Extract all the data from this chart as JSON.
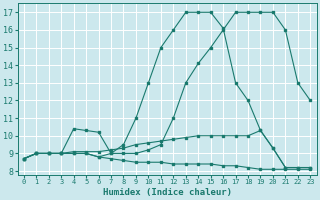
{
  "xlabel": "Humidex (Indice chaleur)",
  "xlim": [
    -0.5,
    23.5
  ],
  "ylim": [
    7.8,
    17.5
  ],
  "xticks": [
    0,
    1,
    2,
    3,
    4,
    5,
    6,
    7,
    8,
    9,
    10,
    11,
    12,
    13,
    14,
    15,
    16,
    17,
    18,
    19,
    20,
    21,
    22,
    23
  ],
  "yticks": [
    8,
    9,
    10,
    11,
    12,
    13,
    14,
    15,
    16,
    17
  ],
  "bg_color": "#cce8ed",
  "grid_color": "#ffffff",
  "line_color": "#1a7a6e",
  "lines": [
    {
      "x": [
        0,
        1,
        2,
        3,
        4,
        5,
        6,
        7,
        8,
        9,
        10,
        11,
        12,
        13,
        14,
        15,
        16,
        17,
        18,
        19,
        20,
        21,
        22,
        23
      ],
      "y": [
        8.7,
        9.0,
        9.0,
        9.0,
        9.0,
        9.0,
        8.8,
        8.7,
        8.6,
        8.5,
        8.5,
        8.5,
        8.4,
        8.4,
        8.4,
        8.4,
        8.3,
        8.3,
        8.2,
        8.1,
        8.1,
        8.1,
        8.1,
        8.1
      ]
    },
    {
      "x": [
        0,
        1,
        2,
        3,
        4,
        5,
        6,
        7,
        8,
        9,
        10,
        11,
        12,
        13,
        14,
        15,
        16,
        17,
        18,
        19,
        20,
        21,
        22,
        23
      ],
      "y": [
        8.7,
        9.0,
        9.0,
        9.0,
        9.1,
        9.1,
        9.1,
        9.2,
        9.3,
        9.5,
        9.6,
        9.7,
        9.8,
        9.9,
        10.0,
        10.0,
        10.0,
        10.0,
        10.0,
        10.3,
        9.3,
        8.2,
        8.2,
        8.2
      ]
    },
    {
      "x": [
        0,
        1,
        2,
        3,
        4,
        5,
        6,
        7,
        8,
        9,
        10,
        11,
        12,
        13,
        14,
        15,
        16,
        17,
        18,
        19,
        20,
        21,
        22,
        23
      ],
      "y": [
        8.7,
        9.0,
        9.0,
        9.0,
        10.4,
        10.3,
        10.2,
        9.0,
        9.0,
        9.0,
        9.2,
        9.5,
        11.0,
        13.0,
        14.1,
        15.0,
        16.0,
        17.0,
        17.0,
        17.0,
        17.0,
        16.0,
        13.0,
        12.0
      ]
    },
    {
      "x": [
        0,
        1,
        2,
        3,
        4,
        5,
        6,
        7,
        8,
        9,
        10,
        11,
        12,
        13,
        14,
        15,
        16,
        17,
        18,
        19,
        20,
        21,
        22,
        23
      ],
      "y": [
        8.7,
        9.0,
        9.0,
        9.0,
        9.0,
        9.0,
        8.8,
        9.0,
        9.5,
        11.0,
        13.0,
        15.0,
        16.0,
        17.0,
        17.0,
        17.0,
        16.1,
        13.0,
        12.0,
        10.3,
        9.3,
        8.2,
        8.2,
        8.2
      ]
    }
  ]
}
